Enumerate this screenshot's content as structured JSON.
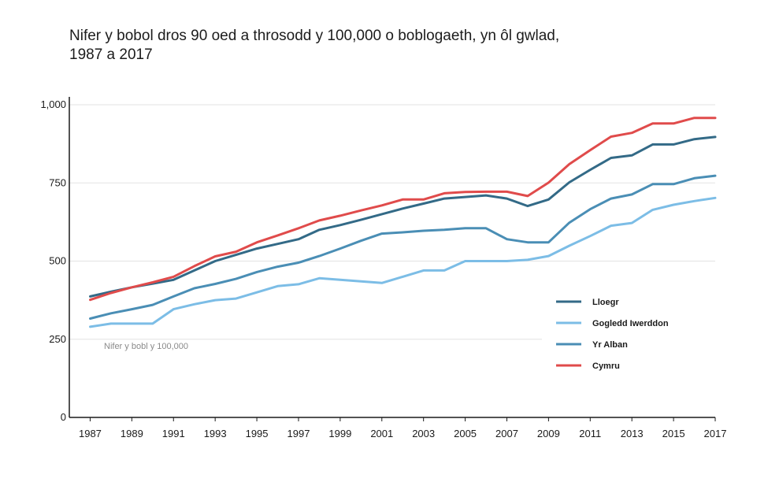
{
  "title": {
    "line1": "Nifer y bobol dros 90 oed a throsodd y 100,000 o boblogaeth, yn ôl gwlad,",
    "line2": "1987 a 2017"
  },
  "chart_data": {
    "type": "line",
    "title": "Nifer y bobol dros 90 oed a throsodd y 100,000 o boblogaeth, yn ôl gwlad, 1987 a 2017",
    "xlabel": "",
    "ylabel": "Nifer y bobl y 100,000",
    "x": [
      1987,
      1988,
      1989,
      1990,
      1991,
      1992,
      1993,
      1994,
      1995,
      1996,
      1997,
      1998,
      1999,
      2000,
      2001,
      2002,
      2003,
      2004,
      2005,
      2006,
      2007,
      2008,
      2009,
      2010,
      2011,
      2012,
      2013,
      2014,
      2015,
      2016,
      2017
    ],
    "xlim": [
      1986,
      2017
    ],
    "ylim": [
      0,
      1000
    ],
    "x_ticks": [
      "1987",
      "1989",
      "1991",
      "1993",
      "1995",
      "1997",
      "1999",
      "2001",
      "2003",
      "2005",
      "2007",
      "2009",
      "2011",
      "2013",
      "2015",
      "2017"
    ],
    "y_ticks": [
      {
        "value": 0,
        "label": "0"
      },
      {
        "value": 250,
        "label": "250"
      },
      {
        "value": 500,
        "label": "500"
      },
      {
        "value": 750,
        "label": "750"
      },
      {
        "value": 1000,
        "label": "1,000"
      }
    ],
    "grid": true,
    "legend_position": "bottom-right",
    "series": [
      {
        "name": "Lloegr",
        "color": "#336a87",
        "values": [
          387,
          402,
          416,
          428,
          440,
          470,
          500,
          520,
          540,
          555,
          570,
          600,
          615,
          632,
          650,
          668,
          684,
          700,
          705,
          710,
          700,
          676,
          697,
          752,
          792,
          830,
          838,
          873,
          873,
          890,
          897
        ]
      },
      {
        "name": "Gogledd Iwerddon",
        "color": "#7cbde6",
        "values": [
          290,
          300,
          300,
          300,
          346,
          362,
          375,
          380,
          400,
          420,
          426,
          445,
          440,
          435,
          430,
          450,
          470,
          470,
          500,
          500,
          500,
          504,
          516,
          549,
          580,
          613,
          622,
          664,
          680,
          692,
          702
        ]
      },
      {
        "name": "Yr Alban",
        "color": "#4a8eb5",
        "values": [
          316,
          333,
          346,
          360,
          387,
          413,
          427,
          443,
          465,
          482,
          495,
          516,
          540,
          565,
          588,
          592,
          597,
          600,
          605,
          605,
          570,
          560,
          560,
          623,
          666,
          700,
          713,
          746,
          746,
          765,
          773
        ]
      },
      {
        "name": "Cymru",
        "color": "#e04b4b",
        "values": [
          376,
          398,
          416,
          432,
          450,
          484,
          515,
          530,
          560,
          582,
          605,
          630,
          645,
          662,
          678,
          697,
          697,
          717,
          721,
          722,
          722,
          708,
          751,
          810,
          855,
          898,
          910,
          940,
          940,
          958,
          958
        ]
      }
    ]
  }
}
